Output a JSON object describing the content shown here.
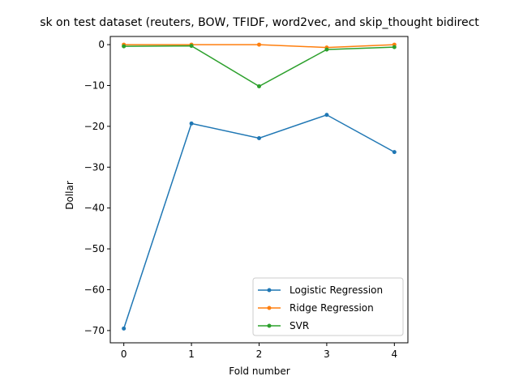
{
  "chart_data": {
    "type": "line",
    "title": "sk on test dataset (reuters, BOW, TFIDF, word2vec, and skip_thought bidirect",
    "xlabel": "Fold number",
    "ylabel": "Dollar",
    "x": [
      0,
      1,
      2,
      3,
      4
    ],
    "xticks": [
      "0",
      "1",
      "2",
      "3",
      "4"
    ],
    "yticks": [
      0,
      -10,
      -20,
      -30,
      -40,
      -50,
      -60,
      -70
    ],
    "xlim": [
      -0.2,
      4.2
    ],
    "ylim": [
      -73,
      2
    ],
    "grid": false,
    "legend_position": "lower-right",
    "series": [
      {
        "name": "Logistic Regression",
        "color": "#1f77b4",
        "values": [
          -69.5,
          -19.3,
          -22.9,
          -17.2,
          -26.3
        ]
      },
      {
        "name": "Ridge Regression",
        "color": "#ff7f0e",
        "values": [
          0.0,
          0.0,
          0.0,
          -0.7,
          0.0
        ]
      },
      {
        "name": "SVR",
        "color": "#2ca02c",
        "values": [
          -0.4,
          -0.3,
          -10.2,
          -1.2,
          -0.6
        ]
      }
    ]
  }
}
